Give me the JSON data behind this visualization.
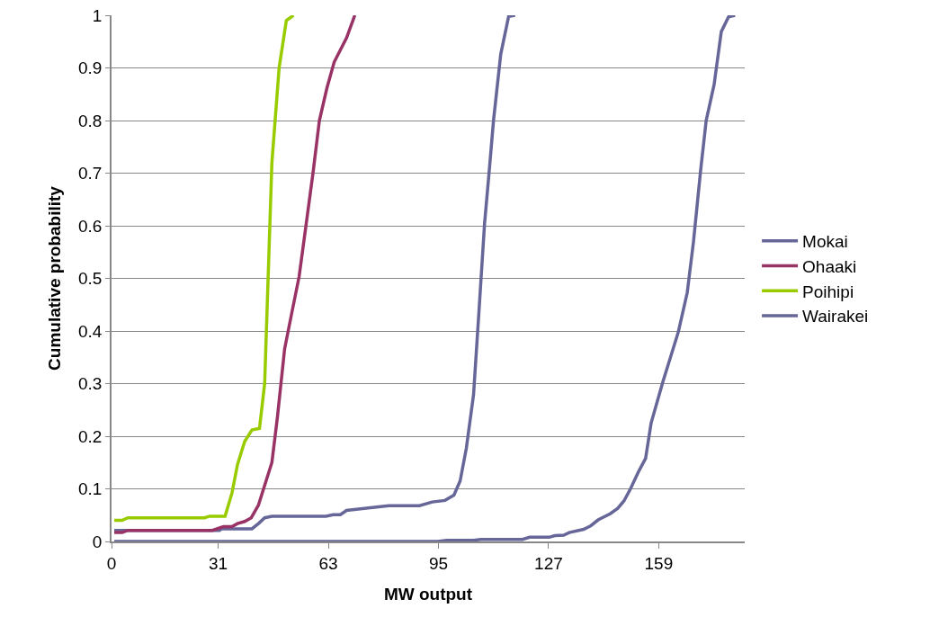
{
  "chart_data": {
    "type": "line",
    "xlabel": "MW output",
    "ylabel": "Cumulative probability",
    "xlim": [
      0,
      184
    ],
    "xticks": [
      0,
      31,
      63,
      95,
      127,
      159
    ],
    "ylim": [
      0,
      1
    ],
    "yticks": [
      0,
      0.1,
      0.2,
      0.3,
      0.4,
      0.5,
      0.6,
      0.7,
      0.8,
      0.9,
      1
    ],
    "grid": "y",
    "legend": "right",
    "marker": "none",
    "line_style": "solid",
    "series": [
      {
        "name": "Mokai",
        "color": "#666699",
        "x": [
          0.8,
          31.4,
          32,
          40.8,
          42.7,
          44.5,
          46.6,
          62.3,
          64.4,
          66.5,
          68.3,
          72.3,
          76.4,
          80.6,
          89.5,
          93.2,
          96.9,
          99.5,
          101.3,
          103.1,
          105.2,
          106.8,
          108.4,
          109.7,
          111,
          113.1,
          115.4,
          117.3
        ],
        "values": [
          0.021,
          0.021,
          0.024,
          0.024,
          0.034,
          0.045,
          0.048,
          0.048,
          0.051,
          0.051,
          0.059,
          0.062,
          0.065,
          0.068,
          0.068,
          0.075,
          0.078,
          0.088,
          0.115,
          0.177,
          0.279,
          0.44,
          0.604,
          0.7,
          0.8,
          0.926,
          0.998,
          1.0
        ]
      },
      {
        "name": "Ohaaki",
        "color": "#993366",
        "x": [
          0.8,
          3.1,
          4.7,
          29.3,
          32.5,
          35,
          36.6,
          38.7,
          40.6,
          42.7,
          44.8,
          46.6,
          48.2,
          50.3,
          52.4,
          54.5,
          56.5,
          58.6,
          60.4,
          62.6,
          64.7,
          68.3,
          70.7
        ],
        "values": [
          0.017,
          0.017,
          0.021,
          0.021,
          0.028,
          0.028,
          0.034,
          0.038,
          0.045,
          0.069,
          0.113,
          0.15,
          0.236,
          0.366,
          0.435,
          0.503,
          0.6,
          0.703,
          0.8,
          0.862,
          0.911,
          0.957,
          1.0
        ]
      },
      {
        "name": "Poihipi",
        "color": "#99cc00",
        "x": [
          0.8,
          3.1,
          4.7,
          27,
          28.5,
          33,
          35,
          36.6,
          38.7,
          40.8,
          43,
          44.5,
          46.6,
          48.7,
          50.8,
          52.9
        ],
        "values": [
          0.04,
          0.04,
          0.045,
          0.045,
          0.048,
          0.048,
          0.092,
          0.146,
          0.19,
          0.212,
          0.215,
          0.3,
          0.72,
          0.9,
          0.99,
          1.0
        ]
      },
      {
        "name": "Wairakei",
        "color": "#666699",
        "x": [
          0.8,
          94.8,
          97.4,
          105.2,
          107.3,
          119.4,
          121.5,
          127.2,
          128.8,
          131.4,
          133,
          137.2,
          139.3,
          141.4,
          145,
          147.1,
          148.9,
          150.8,
          153.1,
          155.2,
          156.8,
          160.2,
          164.7,
          167.3,
          169.1,
          171.2,
          172.8,
          175.1,
          177.2,
          179.3,
          181.2
        ],
        "values": [
          0,
          0,
          0.002,
          0.002,
          0.004,
          0.004,
          0.008,
          0.008,
          0.011,
          0.012,
          0.017,
          0.023,
          0.03,
          0.041,
          0.053,
          0.063,
          0.077,
          0.1,
          0.132,
          0.158,
          0.225,
          0.303,
          0.398,
          0.473,
          0.569,
          0.706,
          0.8,
          0.868,
          0.969,
          0.997,
          1.0
        ]
      }
    ]
  }
}
